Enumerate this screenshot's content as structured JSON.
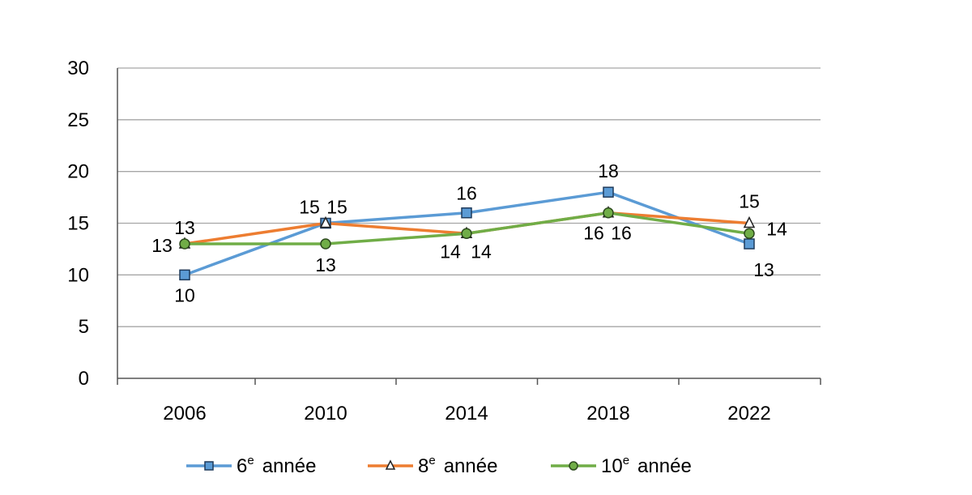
{
  "chart_data": {
    "type": "line",
    "categories": [
      "2006",
      "2010",
      "2014",
      "2018",
      "2022"
    ],
    "ylim": [
      0,
      30
    ],
    "yticks": [
      0,
      5,
      10,
      15,
      20,
      25,
      30
    ],
    "grid": true,
    "legend_position": "bottom",
    "data_labels": true,
    "series": [
      {
        "name": "6e année",
        "name_base": "6",
        "name_sup": "e",
        "name_rest": "année",
        "values": [
          10,
          15,
          16,
          18,
          13
        ],
        "color": "#5B9BD5",
        "marker": "square",
        "marker_fill": "#5B9BD5"
      },
      {
        "name": "8e année",
        "name_base": "8",
        "name_sup": "e",
        "name_rest": "année",
        "values": [
          13,
          15,
          14,
          16,
          15
        ],
        "color": "#ED7D31",
        "marker": "triangle",
        "marker_fill": "#ffffff"
      },
      {
        "name": "10e année",
        "name_base": "10",
        "name_sup": "e",
        "name_rest": "année",
        "values": [
          13,
          13,
          14,
          16,
          14
        ],
        "color": "#70AD47",
        "marker": "circle",
        "marker_fill": "#70AD47"
      }
    ]
  }
}
